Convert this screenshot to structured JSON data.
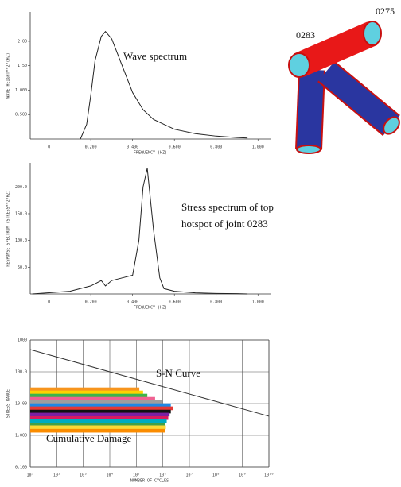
{
  "chart_data": [
    {
      "type": "line",
      "title": "Wave spectrum",
      "x_label": "FREQUENCY (HZ)",
      "y_label": "WAVE HEIGHT**2/(HZ)",
      "xlim": [
        -0.09,
        1.06
      ],
      "ylim": [
        0,
        2.6
      ],
      "xticks": [
        0,
        {
          "value": 0.2,
          "label": "0.200"
        },
        {
          "value": 0.4,
          "label": "0.400"
        },
        {
          "value": 0.6,
          "label": "0.600"
        },
        {
          "value": 0.8,
          "label": "0.800"
        },
        {
          "value": 1,
          "label": "1.000"
        }
      ],
      "yticks": [
        {
          "value": 0.5,
          "label": "0.500"
        },
        {
          "value": 1,
          "label": "1.000"
        },
        {
          "value": 1.5,
          "label": "1.50"
        },
        {
          "value": 2,
          "label": "2.00"
        }
      ],
      "series": [
        {
          "color": "#222222",
          "x": [
            0.15,
            0.18,
            0.2,
            0.22,
            0.25,
            0.27,
            0.3,
            0.35,
            0.4,
            0.45,
            0.5,
            0.6,
            0.7,
            0.8,
            0.9,
            0.95
          ],
          "values": [
            0,
            0.3,
            0.9,
            1.6,
            2.1,
            2.2,
            2.05,
            1.5,
            0.95,
            0.6,
            0.4,
            0.2,
            0.11,
            0.06,
            0.03,
            0.02
          ]
        }
      ]
    },
    {
      "type": "line",
      "x_label": "FREQUENCY (HZ)",
      "y_label": "RESPONSE SPECTRUM (STRESS**2/HZ)",
      "annotations": [
        "Stress  spectrum of top",
        "hotspot of joint 0283"
      ],
      "xlim": [
        -0.09,
        1.06
      ],
      "ylim": [
        0,
        245
      ],
      "xticks": [
        0,
        {
          "value": 0.2,
          "label": "0.200"
        },
        {
          "value": 0.4,
          "label": "0.400"
        },
        {
          "value": 0.6,
          "label": "0.600"
        },
        {
          "value": 0.8,
          "label": "0.800"
        },
        {
          "value": 1,
          "label": "1.000"
        }
      ],
      "yticks": [
        {
          "value": 50,
          "label": "50.0"
        },
        {
          "value": 100,
          "label": "100.0"
        },
        {
          "value": 150,
          "label": "150.0"
        },
        {
          "value": 200,
          "label": "200.0"
        }
      ],
      "series": [
        {
          "color": "#222222",
          "x": [
            -0.08,
            0.1,
            0.2,
            0.25,
            0.27,
            0.3,
            0.35,
            0.4,
            0.43,
            0.45,
            0.47,
            0.5,
            0.53,
            0.55,
            0.6,
            0.7,
            0.8,
            0.9,
            0.95
          ],
          "values": [
            0,
            5,
            15,
            25,
            15,
            25,
            30,
            35,
            100,
            200,
            235,
            120,
            30,
            10,
            5,
            2,
            1,
            0.5,
            0
          ]
        }
      ]
    },
    {
      "type": "line",
      "x_label": "NUMBER OF CYCLES",
      "y_label": "STRESS RANGE",
      "log_x": true,
      "log_y": true,
      "grid": true,
      "annotations": [
        "S-N Curve",
        "Cumulative Damage"
      ],
      "xlim": [
        10,
        10000000000
      ],
      "ylim": [
        0.1,
        1000
      ],
      "xticks": [
        {
          "value": 10,
          "label": "10¹"
        },
        {
          "value": 100,
          "label": "10²"
        },
        {
          "value": 1000,
          "label": "10³"
        },
        {
          "value": 10000,
          "label": "10⁴"
        },
        {
          "value": 100000,
          "label": "10⁵"
        },
        {
          "value": 1000000,
          "label": "10⁶"
        },
        {
          "value": 10000000,
          "label": "10⁷"
        },
        {
          "value": 100000000,
          "label": "10⁸"
        },
        {
          "value": 1000000000,
          "label": "10⁹"
        },
        {
          "value": 10000000000,
          "label": "10¹⁰"
        }
      ],
      "yticks": [
        {
          "value": 0.1,
          "label": "0.100"
        },
        {
          "value": 1,
          "label": "1.000"
        },
        {
          "value": 10,
          "label": "10.00"
        },
        {
          "value": 100,
          "label": "100.0"
        },
        1000
      ],
      "series": [
        {
          "color": "#333333",
          "x": [
            10,
            10000000000
          ],
          "values": [
            500,
            4
          ]
        }
      ],
      "bars": {
        "y": [
          28.2,
          22.4,
          17.8,
          14.1,
          11.2,
          8.9,
          7.1,
          5.6,
          4.5,
          3.5,
          2.8,
          2.2,
          1.8,
          1.4
        ],
        "values": [
          130000,
          180000,
          260000,
          510000,
          1000000,
          2000000,
          2500000,
          2000000,
          1800000,
          1600000,
          1400000,
          1200000,
          1300000,
          1200000
        ],
        "colors": [
          "#f7941d",
          "#ffd200",
          "#3cb44b",
          "#f06292",
          "#9e9e9e",
          "#1e88e5",
          "#e53935",
          "#111111",
          "#7b1fa2",
          "#d81b60",
          "#00acc1",
          "#43a047",
          "#fdd835",
          "#fb8c00"
        ]
      }
    }
  ],
  "diagram": {
    "labels": [
      "0283",
      "0275"
    ]
  }
}
